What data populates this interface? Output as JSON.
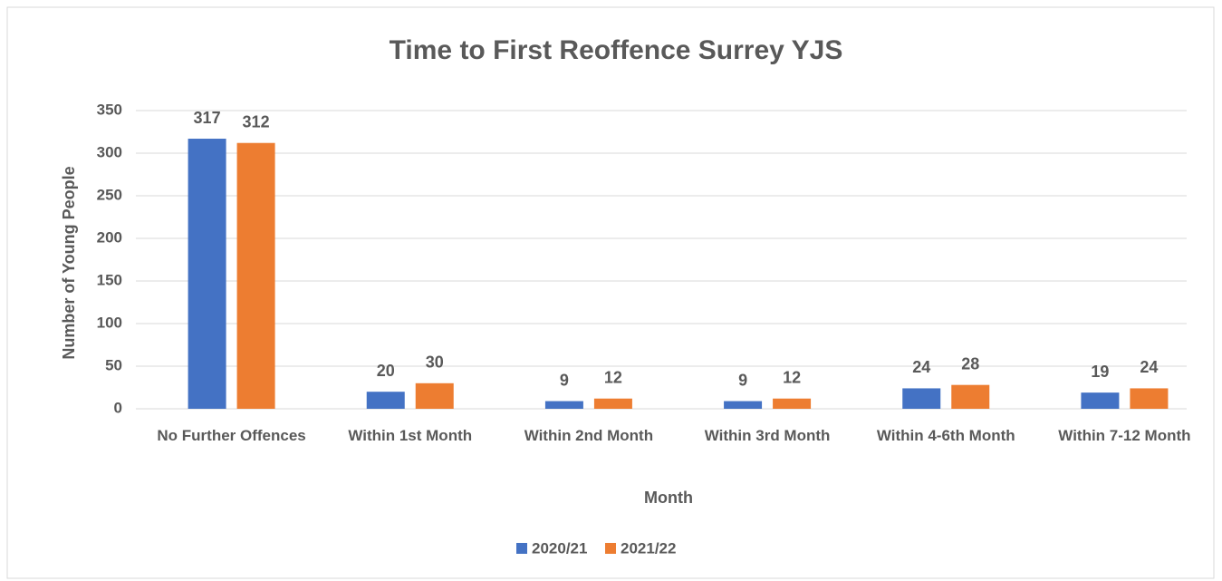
{
  "chart_data": {
    "type": "bar",
    "title": "Time to First Reoffence Surrey YJS",
    "x_label": "Month",
    "y_label": "Number of Young People",
    "categories": [
      "No Further Offences",
      "Within 1st Month",
      "Within 2nd Month",
      "Within 3rd Month",
      "Within 4-6th Month",
      "Within 7-12 Month"
    ],
    "series": [
      {
        "name": "2020/21",
        "color": "#4472c4",
        "values": [
          317,
          20,
          9,
          9,
          24,
          19
        ]
      },
      {
        "name": "2021/22",
        "color": "#ed7d31",
        "values": [
          312,
          30,
          12,
          12,
          28,
          24
        ]
      }
    ],
    "ylim": [
      0,
      350
    ],
    "yticks": [
      0,
      50,
      100,
      150,
      200,
      250,
      300,
      350
    ],
    "grid": true,
    "legend": "bottom"
  }
}
